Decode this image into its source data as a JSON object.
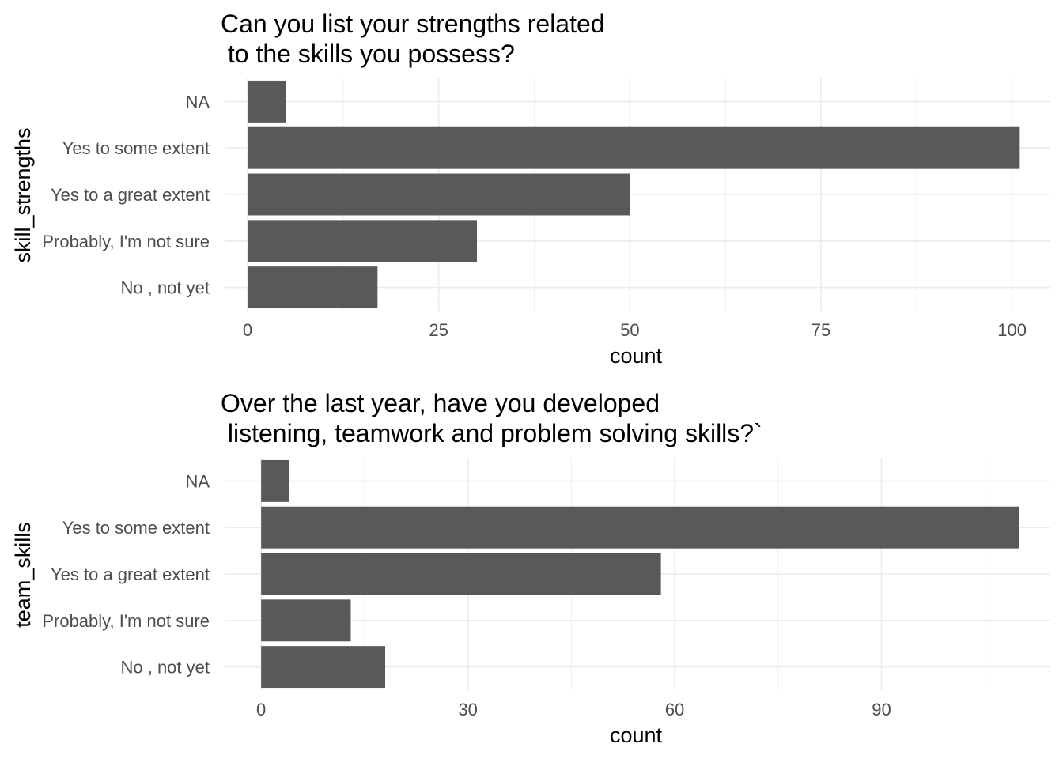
{
  "chart_data": [
    {
      "type": "bar",
      "orientation": "horizontal",
      "title_lines": [
        "Can you list your strengths related",
        " to the skills you possess?"
      ],
      "xlabel": "count",
      "ylabel": "skill_strengths",
      "categories": [
        "NA",
        "Yes to some extent",
        "Yes to a great extent",
        "Probably, I'm not sure",
        "No , not yet"
      ],
      "values": [
        5,
        101,
        50,
        30,
        17
      ],
      "xticks": [
        0,
        25,
        50,
        75,
        100
      ],
      "xlim": [
        -3,
        105
      ],
      "grid": true,
      "bar_color": "#595959"
    },
    {
      "type": "bar",
      "orientation": "horizontal",
      "title_lines": [
        "Over the last year, have you developed",
        " listening, teamwork and problem solving skills?`"
      ],
      "xlabel": "count",
      "ylabel": "team_skills",
      "categories": [
        "NA",
        "Yes to some extent",
        "Yes to a great extent",
        "Probably, I'm not sure",
        "No , not yet"
      ],
      "values": [
        4,
        110,
        58,
        13,
        18
      ],
      "xticks": [
        0,
        30,
        60,
        90
      ],
      "xlim": [
        -5.3,
        114.5
      ],
      "grid": true,
      "bar_color": "#595959"
    }
  ]
}
